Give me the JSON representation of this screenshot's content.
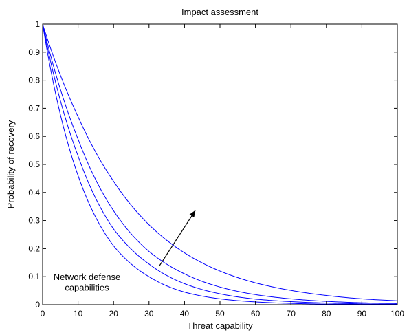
{
  "chart_data": {
    "type": "line",
    "title": "Impact assessment",
    "xlabel": "Threat capability",
    "ylabel": "Probability of recovery",
    "xlim": [
      0,
      100
    ],
    "ylim": [
      0,
      1
    ],
    "x_ticks": [
      0,
      10,
      20,
      30,
      40,
      50,
      60,
      70,
      80,
      90,
      100
    ],
    "y_ticks": [
      0,
      0.1,
      0.2,
      0.3,
      0.4,
      0.5,
      0.6,
      0.7,
      0.8,
      0.9,
      1
    ],
    "x_tick_labels": [
      "0",
      "10",
      "20",
      "30",
      "40",
      "50",
      "60",
      "70",
      "80",
      "90",
      "100"
    ],
    "y_tick_labels": [
      "0",
      "0.1",
      "0.2",
      "0.3",
      "0.4",
      "0.5",
      "0.6",
      "0.7",
      "0.8",
      "0.9",
      "1"
    ],
    "grid": false,
    "box": true,
    "series_color": "#0000ff",
    "x": [
      0,
      10,
      20,
      30,
      40,
      50,
      60,
      70,
      80,
      90,
      100
    ],
    "series": [
      {
        "values": [
          1.0,
          0.46,
          0.21,
          0.1,
          0.045,
          0.021,
          0.01,
          0.0045,
          0.002,
          0.001,
          0.0005
        ]
      },
      {
        "values": [
          1.0,
          0.53,
          0.27,
          0.145,
          0.075,
          0.039,
          0.02,
          0.011,
          0.006,
          0.003,
          0.0015
        ]
      },
      {
        "values": [
          1.0,
          0.59,
          0.335,
          0.19,
          0.11,
          0.063,
          0.036,
          0.021,
          0.012,
          0.007,
          0.004
        ]
      },
      {
        "values": [
          1.0,
          0.67,
          0.44,
          0.285,
          0.185,
          0.12,
          0.078,
          0.051,
          0.033,
          0.021,
          0.014
        ]
      }
    ],
    "annotations": [
      {
        "text_lines": [
          "Network defense",
          "capabilities"
        ],
        "arrow_from": [
          33,
          0.14
        ],
        "arrow_to": [
          43,
          0.335
        ]
      }
    ]
  }
}
